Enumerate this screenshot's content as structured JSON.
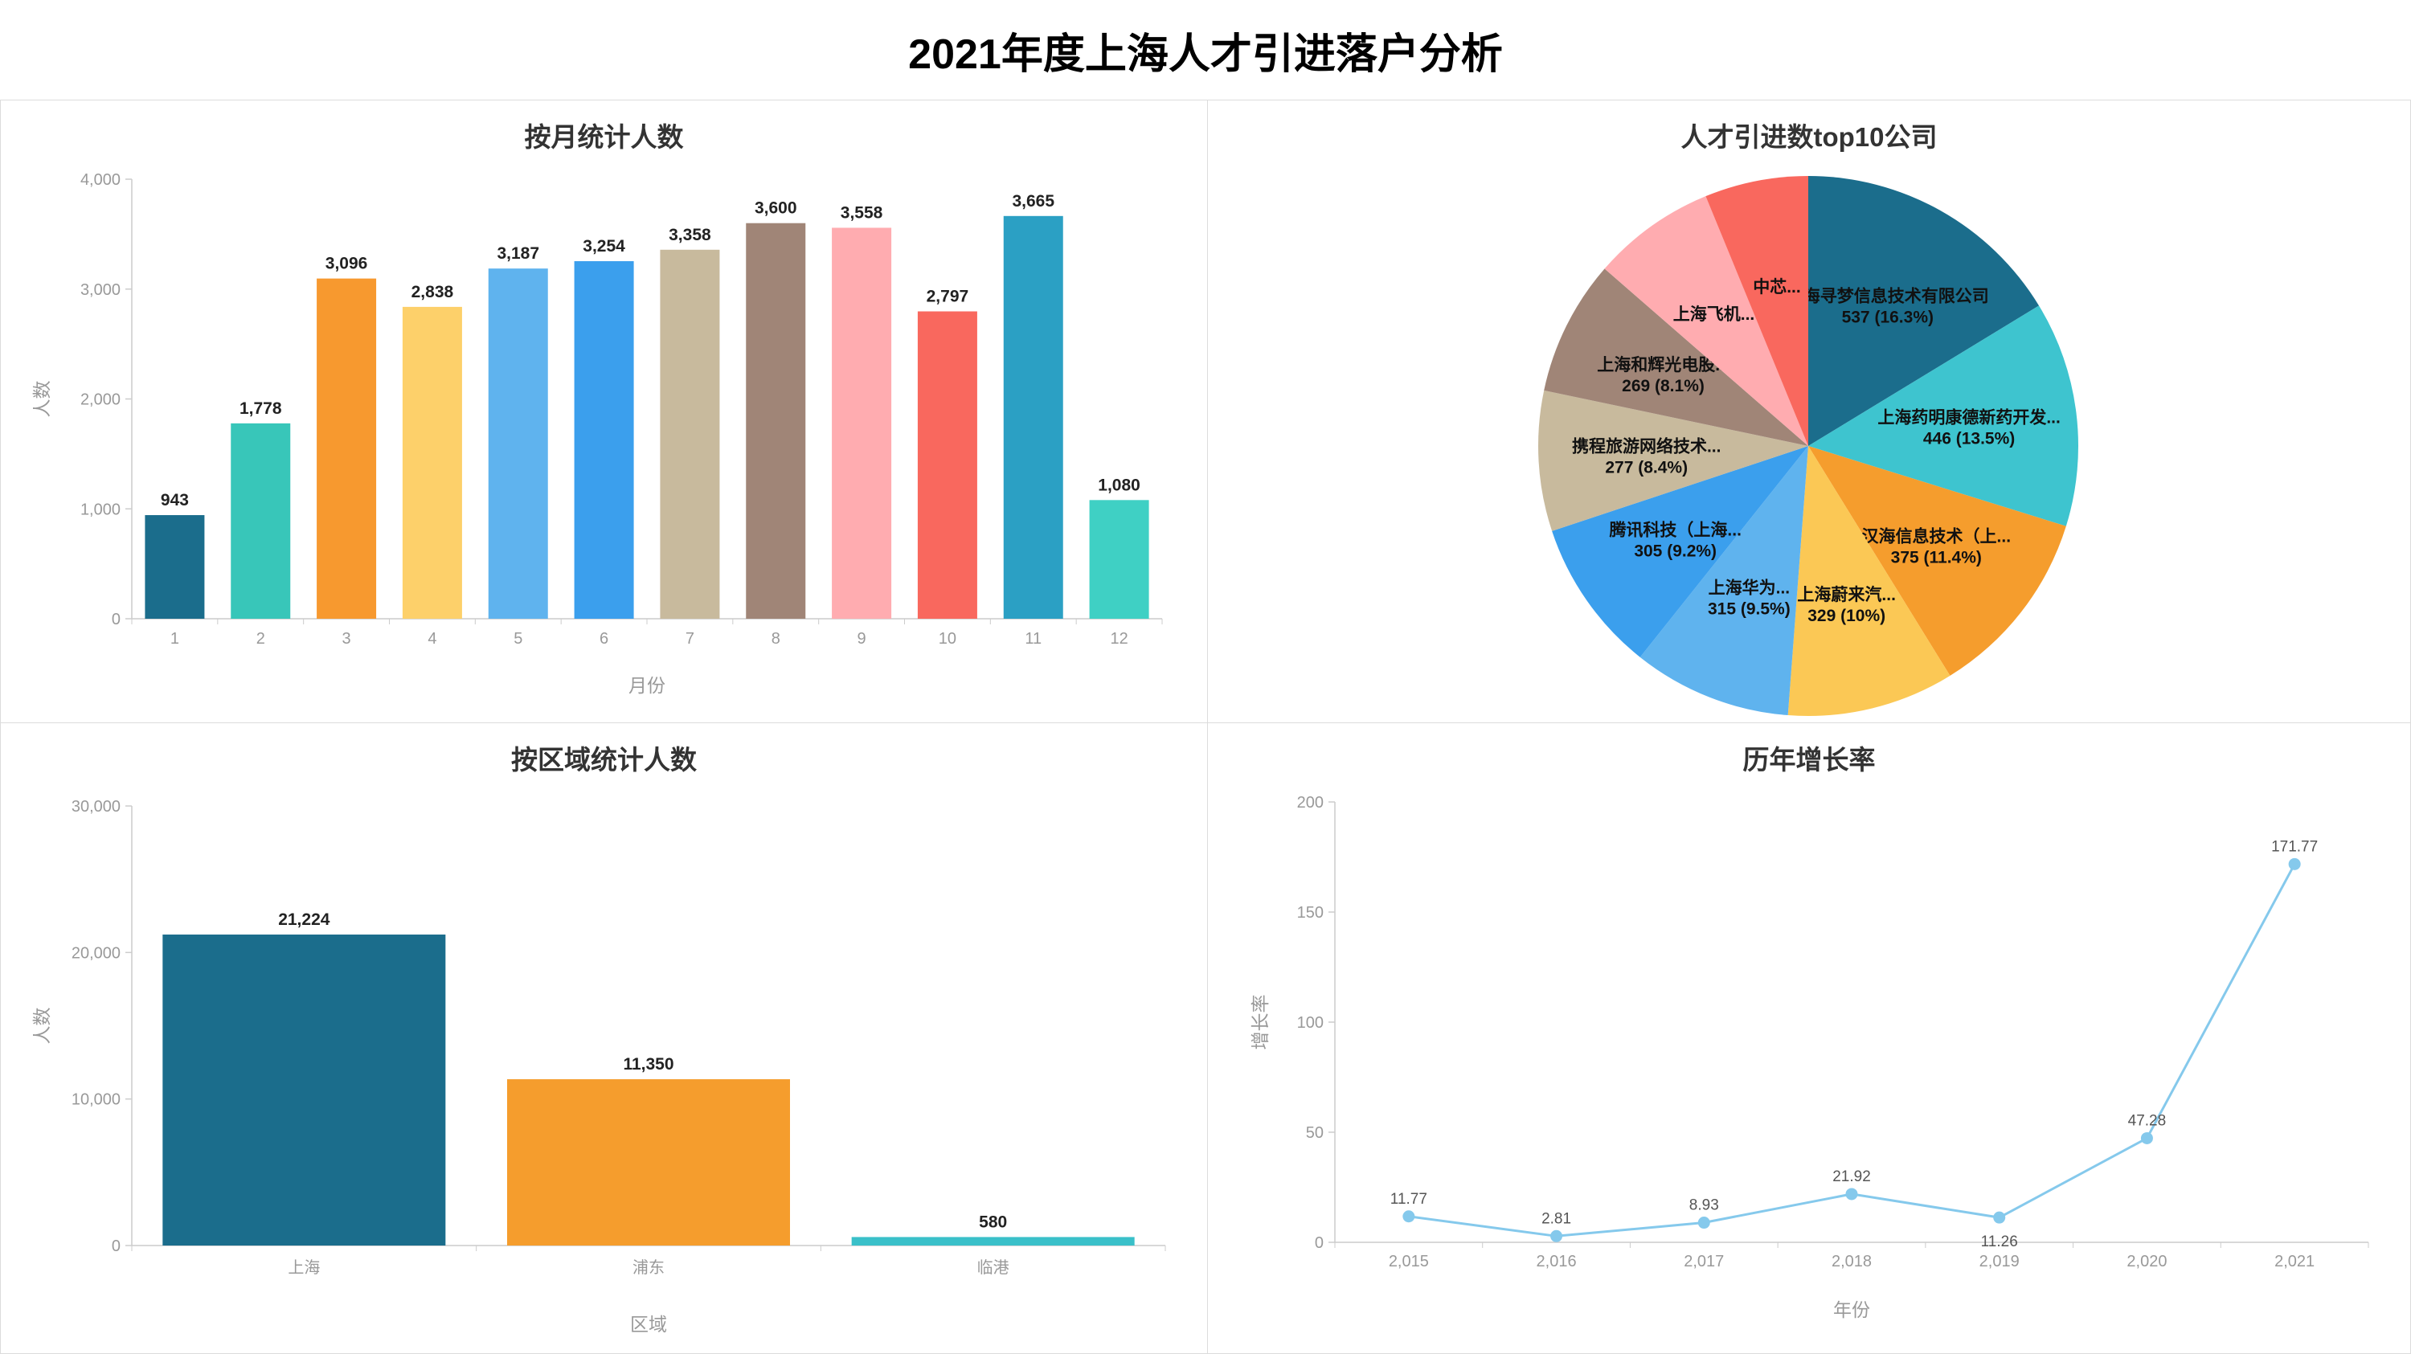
{
  "page_title": "2021年度上海人才引进落户分析",
  "chart_data": [
    {
      "id": "monthly",
      "type": "bar",
      "title": "按月统计人数",
      "xlabel": "月份",
      "ylabel": "人数",
      "categories": [
        "1",
        "2",
        "3",
        "4",
        "5",
        "6",
        "7",
        "8",
        "9",
        "10",
        "11",
        "12"
      ],
      "values": [
        943,
        1778,
        3096,
        2838,
        3187,
        3254,
        3358,
        3600,
        3558,
        2797,
        3665,
        1080
      ],
      "value_labels": [
        "943",
        "1,778",
        "3,096",
        "2,838",
        "3,187",
        "3,254",
        "3,358",
        "3,600",
        "3,558",
        "2,797",
        "3,665",
        "1,080"
      ],
      "colors": [
        "#1b6d8c",
        "#38c6b9",
        "#f7992f",
        "#fdd06a",
        "#5fb3ee",
        "#3b9fed",
        "#c8ba9d",
        "#a08577",
        "#ffacb0",
        "#f9685e",
        "#2ba0c4",
        "#3fd0c4"
      ],
      "y_max": 4000,
      "y_ticks": [
        {
          "v": 0,
          "label": "0"
        },
        {
          "v": 1000,
          "label": "1,000"
        },
        {
          "v": 2000,
          "label": "2,000"
        },
        {
          "v": 3000,
          "label": "3,000"
        },
        {
          "v": 4000,
          "label": "4,000"
        }
      ]
    },
    {
      "id": "top10-companies",
      "type": "pie",
      "title": "人才引进数top10公司",
      "slices": [
        {
          "name": "上海寻梦信息技术有限公司",
          "value_label": "537 (16.3%)",
          "pct": 16.3,
          "color": "#1b6d8c"
        },
        {
          "name": "上海药明康德新药开发...",
          "value_label": "446 (13.5%)",
          "pct": 13.5,
          "color": "#3ec4cf"
        },
        {
          "name": "汉海信息技术（上...",
          "value_label": "375 (11.4%)",
          "pct": 11.4,
          "color": "#f59d2d"
        },
        {
          "name": "上海蔚来汽...",
          "value_label": "329 (10%)",
          "pct": 10,
          "color": "#fbc855"
        },
        {
          "name": "上海华为...",
          "value_label": "315 (9.5%)",
          "pct": 9.5,
          "color": "#5fb3ee"
        },
        {
          "name": "腾讯科技（上海...",
          "value_label": "305 (9.2%)",
          "pct": 9.2,
          "color": "#3b9fed"
        },
        {
          "name": "携程旅游网络技术...",
          "value_label": "277 (8.4%)",
          "pct": 8.4,
          "color": "#c8ba9d"
        },
        {
          "name": "上海和辉光电股...",
          "value_label": "269 (8.1%)",
          "pct": 8.1,
          "color": "#a08577"
        },
        {
          "name": "上海飞机...",
          "value_label": "",
          "pct": 7.4,
          "color": "#ffacb0"
        },
        {
          "name": "中芯...",
          "value_label": "",
          "pct": 6.2,
          "color": "#f9685e"
        }
      ]
    },
    {
      "id": "region",
      "type": "bar",
      "title": "按区域统计人数",
      "xlabel": "区域",
      "ylabel": "人数",
      "categories": [
        "上海",
        "浦东",
        "临港"
      ],
      "values": [
        21224,
        11350,
        580
      ],
      "value_labels": [
        "21,224",
        "11,350",
        "580"
      ],
      "colors": [
        "#1b6d8c",
        "#f59d2d",
        "#3ac0c9"
      ],
      "y_max": 30000,
      "y_ticks": [
        {
          "v": 0,
          "label": "0"
        },
        {
          "v": 10000,
          "label": "10,000"
        },
        {
          "v": 20000,
          "label": "20,000"
        },
        {
          "v": 30000,
          "label": "30,000"
        }
      ]
    },
    {
      "id": "growth",
      "type": "line",
      "title": "历年增长率",
      "xlabel": "年份",
      "ylabel": "增长率",
      "categories": [
        "2,015",
        "2,016",
        "2,017",
        "2,018",
        "2,019",
        "2,020",
        "2,021"
      ],
      "values": [
        11.77,
        2.81,
        8.93,
        21.92,
        11.26,
        47.28,
        171.77
      ],
      "value_labels": [
        "11.77",
        "2.81",
        "8.93",
        "21.92",
        "11.26",
        "47.28",
        "171.77"
      ],
      "color": "#85c9ec",
      "y_max": 200,
      "y_ticks": [
        {
          "v": 0,
          "label": "0"
        },
        {
          "v": 50,
          "label": "50"
        },
        {
          "v": 100,
          "label": "100"
        },
        {
          "v": 150,
          "label": "150"
        },
        {
          "v": 200,
          "label": "200"
        }
      ]
    }
  ]
}
